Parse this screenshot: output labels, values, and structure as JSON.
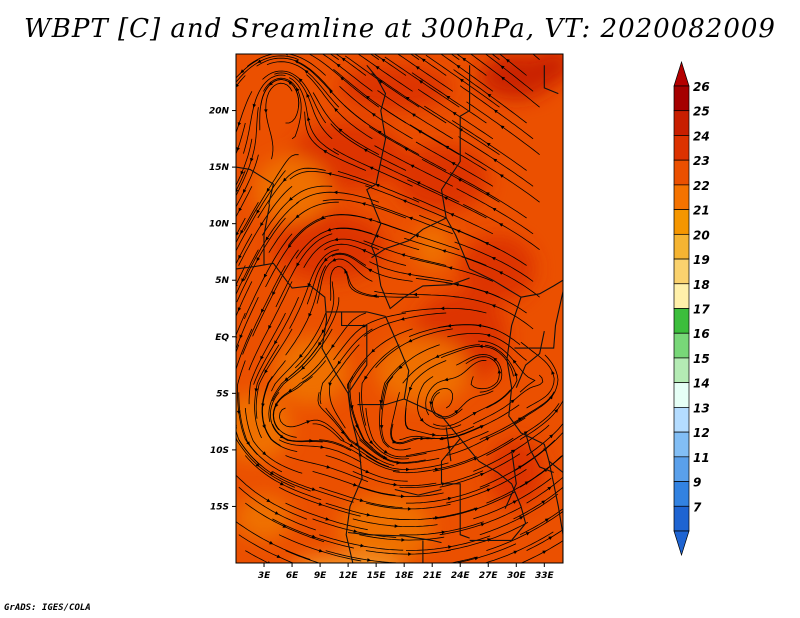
{
  "chart_data": {
    "type": "heatmap",
    "title": "WBPT [C] and Sreamline at 300hPa, VT: 2020082009",
    "variable": "WBPT [C]",
    "level": "300hPa",
    "valid_time": "2020082009",
    "credit": "GrADS: IGES/COLA",
    "x_axis": {
      "range": [
        0,
        35
      ],
      "ticks": [
        3,
        6,
        9,
        12,
        15,
        18,
        21,
        24,
        27,
        30,
        33
      ],
      "tick_labels": [
        "3E",
        "6E",
        "9E",
        "12E",
        "15E",
        "18E",
        "21E",
        "24E",
        "27E",
        "30E",
        "33E"
      ]
    },
    "y_axis": {
      "range": [
        -20,
        25
      ],
      "ticks": [
        20,
        15,
        10,
        5,
        0,
        -5,
        -10,
        -15
      ],
      "tick_labels": [
        "20N",
        "15N",
        "10N",
        "5N",
        "EQ",
        "5S",
        "10S",
        "15S"
      ]
    },
    "colorbar": {
      "labels": [
        "26",
        "25",
        "24",
        "23",
        "22",
        "21",
        "20",
        "19",
        "18",
        "17",
        "16",
        "15",
        "14",
        "13",
        "12",
        "11",
        "9",
        "7"
      ],
      "colors": [
        "#a50000",
        "#c81e00",
        "#dc3200",
        "#eb5000",
        "#f57300",
        "#f59600",
        "#f5b432",
        "#fad26e",
        "#fff0aa",
        "#3cbe3c",
        "#78d778",
        "#b4ebb4",
        "#e6fff6",
        "#b4dcff",
        "#82bef5",
        "#5aa0eb",
        "#3282e1",
        "#1e64d2"
      ],
      "upper_arrow_color": "#b40000",
      "lower_arrow_color": "#1e64d2"
    },
    "field_colors": {
      "base": "#eb5000",
      "warm": "#dc3200",
      "warmest": "#c81e00",
      "cool": "#f07300",
      "coolest": "#f59a28"
    }
  }
}
